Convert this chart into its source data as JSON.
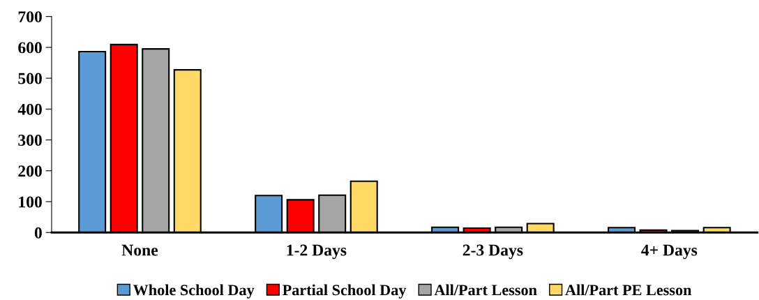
{
  "chart_data": {
    "type": "bar",
    "categories": [
      "None",
      "1-2 Days",
      "2-3 Days",
      "4+ Days"
    ],
    "series": [
      {
        "name": "Whole School Day",
        "color": "#5b9bd5",
        "values": [
          586,
          120,
          17,
          16
        ]
      },
      {
        "name": "Partial School Day",
        "color": "#ff0000",
        "values": [
          609,
          106,
          14,
          8
        ]
      },
      {
        "name": "All/Part Lesson",
        "color": "#a5a5a5",
        "values": [
          595,
          121,
          17,
          6
        ]
      },
      {
        "name": "All/Part PE Lesson",
        "color": "#ffd966",
        "values": [
          527,
          166,
          29,
          16
        ]
      }
    ],
    "ylim": [
      0,
      700
    ],
    "yticks": [
      0,
      100,
      200,
      300,
      400,
      500,
      600,
      700
    ],
    "grid": false,
    "legend": "bottom"
  }
}
